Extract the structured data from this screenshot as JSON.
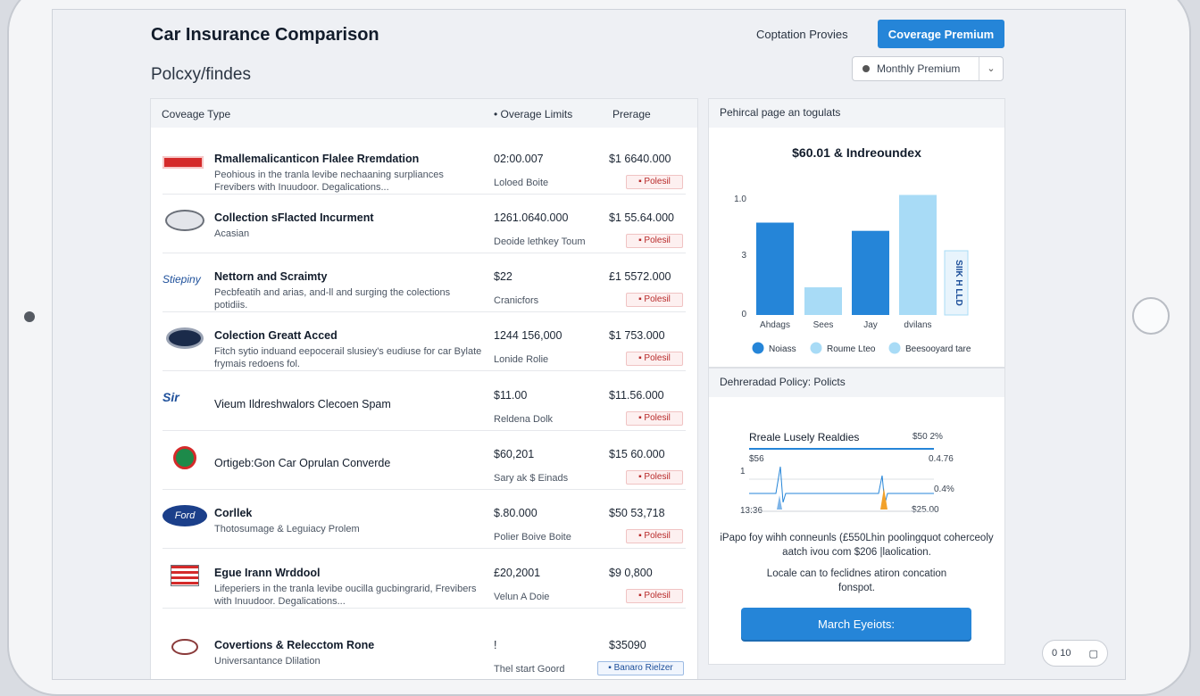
{
  "header": {
    "title": "Car Insurance Comparison",
    "subtitle": "Polcxy/findes",
    "link": "Coptation Provies",
    "primary_button": "Coverage Premium",
    "dropdown_value": "Monthly Premium"
  },
  "table": {
    "columns": {
      "type": "Coveage Type",
      "limits": "• Overage Limits",
      "premium": "Prerage"
    },
    "rows": [
      {
        "name": "Rmallemalicanticon Flalee Rremdation",
        "desc": "Peohious in the tranla levibe nechaaning surpliances Frevibers with Inuudoor. Degalications...",
        "limit": "02:00.007",
        "limit_sub": "Loloed Boite",
        "premium": "$1 6640.000",
        "badge": "▪ Polesil"
      },
      {
        "name": "Collection sFlacted Incurment",
        "desc": "Acasian",
        "limit": "1261.0640.000",
        "limit_sub": "Deoide lethkey Toum",
        "premium": "$1 55.64.000",
        "badge": "▪ Polesil"
      },
      {
        "name": "Nettorn and Scraimty",
        "desc": "Pecbfeatih and arias, and-ll and surging the colections potidiis.",
        "limit": "$22",
        "limit_sub": "Cranicfors",
        "premium": "£1 5572.000",
        "badge": "▪ Polesil"
      },
      {
        "name": "Colection Greatt Acced",
        "desc": "Fitch sytio induand eepocerail slusiey's eudiuse for car Bylate frymais redoens fol.",
        "limit": "1244 156,000",
        "limit_sub": "Lonide Rolie",
        "premium": "$1 753.000",
        "badge": "▪ Polesil"
      },
      {
        "name": "Vieum Ildreshwalors Clecoen Spam",
        "desc": "",
        "limit": "$11.00",
        "limit_sub": "Reldena Dolk",
        "premium": "$11.56.000",
        "badge": "▪ Polesil"
      },
      {
        "name": "Ortigeb:Gon Car Oprulan Converde",
        "desc": "",
        "limit": "$60,201",
        "limit_sub": "Sary ak $ Einads",
        "premium": "$15 60.000",
        "badge": "▪ Polesil"
      },
      {
        "name": "Corllek",
        "desc": "Thotosumage & Leguiacy Prolem",
        "limit": "$.80.000",
        "limit_sub": "Polier Boive Boite",
        "premium": "$50 53,718",
        "badge": "▪ Polesil"
      },
      {
        "name": "Egue Irann Wrddool",
        "desc": "Lifeperiers in the tranla levibe oucilla gucbingrarid, Frevibers with Inuudoor. Degalications...",
        "limit": "£20,2001",
        "limit_sub": "Velun A Doie",
        "premium": "$9 0,800",
        "badge": "▪ Polesil"
      },
      {
        "name": "Covertions & Relecctom Rone",
        "desc": "Universantance Dlilation",
        "limit": "!",
        "limit_sub": "Thel start Goord",
        "premium": "$35090",
        "badge": "▪ Banaro Rielzer"
      }
    ],
    "logo_icons": [
      "red-brand-logo-icon",
      "oval-emblem-logo-icon",
      "script-wordmark-logo-icon",
      "navy-oval-logo-icon",
      "red-script-logo-icon",
      "green-badge-logo-icon",
      "ford-oval-logo-icon",
      "flag-shield-logo-icon",
      "small-oval-logo-icon"
    ],
    "logo_texts": [
      "",
      "",
      "Stiepiny",
      "",
      "Sir",
      "",
      "Ford",
      "",
      ""
    ]
  },
  "chart_panel": {
    "header": "Pehircal page an togulats",
    "chart_data": {
      "type": "bar",
      "title": "$60.01 & Indreoundex",
      "categories": [
        "Ahdags",
        "Sees",
        "Jay",
        "dvilans"
      ],
      "series": [
        {
          "name": "Noiass",
          "color": "#2585d8",
          "values": [
            9.0,
            2.7,
            8.2,
            11.7
          ]
        }
      ],
      "y_ticks": [
        "1.0",
        "3",
        "0"
      ],
      "ylim": [
        0,
        12
      ],
      "legend": [
        {
          "label": "Noiass",
          "color": "#2585d8"
        },
        {
          "label": "Roume Lteo",
          "color": "#a8dbf6"
        },
        {
          "label": "Beesooyard tare",
          "color": "#a8dbf6"
        }
      ],
      "side_label": "SIIK H LLD",
      "bar_colors": [
        "#2585d8",
        "#a8dbf6",
        "#2585d8",
        "#a8dbf6"
      ]
    }
  },
  "policy_panel": {
    "header": "Dehreradad Policy: Policts",
    "mini_chart": {
      "title": "Rreale Lusely Realdies",
      "top_right": "$50 2%",
      "labels_left": [
        "$56",
        "1",
        "13:36"
      ],
      "labels_right": [
        "0.4.76",
        "0.4%",
        "$25.00"
      ]
    },
    "text1": "iPapo foy wihh conneunls (£550Lhin poolingquot coherceoly aatch ivou com $206 |laolication.",
    "text2": "Locale can to feclidnes atiron concation fonspot.",
    "button": "March Eyeiots:"
  },
  "zoom": {
    "left": "0 10",
    "right": "▢"
  }
}
